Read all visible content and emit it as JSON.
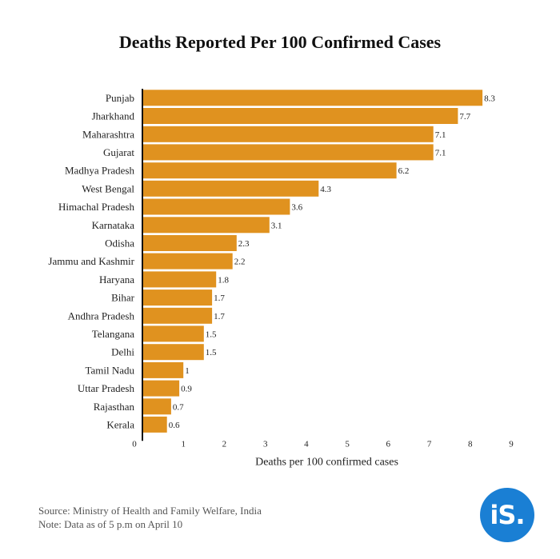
{
  "title": "Deaths Reported Per 100 Confirmed Cases",
  "source": "Source: Ministry of Health and Family Welfare, India",
  "note": "Note: Data as of 5 p.m on April 10",
  "logo": "iS.",
  "colors": {
    "bar": "#e0921f",
    "logo_bg": "#1a7fd4"
  },
  "chart_data": {
    "type": "bar",
    "orientation": "horizontal",
    "title": "Deaths Reported Per 100 Confirmed Cases",
    "xlabel": "Deaths per 100 confirmed cases",
    "ylabel": "",
    "xlim": [
      0,
      9
    ],
    "xticks": [
      0,
      1,
      2,
      3,
      4,
      5,
      6,
      7,
      8,
      9
    ],
    "grid": false,
    "categories": [
      "Punjab",
      "Jharkhand",
      "Maharashtra",
      "Gujarat",
      "Madhya Pradesh",
      "West Bengal",
      "Himachal Pradesh",
      "Karnataka",
      "Odisha",
      "Jammu and Kashmir",
      "Haryana",
      "Bihar",
      "Andhra Pradesh",
      "Telangana",
      "Delhi",
      "Tamil Nadu",
      "Uttar Pradesh",
      "Rajasthan",
      "Kerala"
    ],
    "values": [
      8.3,
      7.7,
      7.1,
      7.1,
      6.2,
      4.3,
      3.6,
      3.1,
      2.3,
      2.2,
      1.8,
      1.7,
      1.7,
      1.5,
      1.5,
      1,
      0.9,
      0.7,
      0.6
    ],
    "value_labels": [
      "8.3",
      "7.7",
      "7.1",
      "7.1",
      "6.2",
      "4.3",
      "3.6",
      "3.1",
      "2.3",
      "2.2",
      "1.8",
      "1.7",
      "1.7",
      "1.5",
      "1.5",
      "1",
      "0.9",
      "0.7",
      "0.6"
    ]
  }
}
